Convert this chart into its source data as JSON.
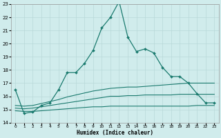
{
  "title": "",
  "xlabel": "Humidex (Indice chaleur)",
  "bg_color": "#d0ecec",
  "grid_color": "#b8d8d8",
  "line_color": "#1a7a6e",
  "xlim": [
    -0.5,
    23.5
  ],
  "ylim": [
    14,
    23
  ],
  "yticks": [
    14,
    15,
    16,
    17,
    18,
    19,
    20,
    21,
    22,
    23
  ],
  "xticks": [
    0,
    1,
    2,
    3,
    4,
    5,
    6,
    7,
    8,
    9,
    10,
    11,
    12,
    13,
    14,
    15,
    16,
    17,
    18,
    19,
    20,
    21,
    22,
    23
  ],
  "main_x": [
    0,
    1,
    2,
    3,
    4,
    5,
    6,
    7,
    8,
    9,
    10,
    11,
    12,
    13,
    14,
    15,
    16,
    17,
    18,
    19,
    20,
    21,
    22,
    23
  ],
  "main_y": [
    16.5,
    14.7,
    14.8,
    15.3,
    15.5,
    16.5,
    17.8,
    17.8,
    18.5,
    19.5,
    21.2,
    22.0,
    23.2,
    20.5,
    19.4,
    19.6,
    19.3,
    18.2,
    17.5,
    17.5,
    17.0,
    16.2,
    15.5,
    15.5
  ],
  "flat1_x": [
    0,
    1,
    2,
    3,
    4,
    5,
    6,
    7,
    8,
    9,
    10,
    11,
    12,
    13,
    14,
    15,
    16,
    17,
    18,
    19,
    20,
    21,
    22,
    23
  ],
  "flat1_y": [
    14.9,
    14.85,
    14.85,
    14.9,
    14.95,
    15.0,
    15.05,
    15.1,
    15.15,
    15.2,
    15.2,
    15.25,
    15.25,
    15.25,
    15.25,
    15.25,
    15.25,
    15.25,
    15.25,
    15.25,
    15.25,
    15.3,
    15.3,
    15.3
  ],
  "flat2_x": [
    0,
    1,
    2,
    3,
    4,
    5,
    6,
    7,
    8,
    9,
    10,
    11,
    12,
    13,
    14,
    15,
    16,
    17,
    18,
    19,
    20,
    21,
    22,
    23
  ],
  "flat2_y": [
    15.1,
    15.05,
    15.1,
    15.2,
    15.3,
    15.4,
    15.5,
    15.6,
    15.7,
    15.8,
    15.9,
    16.0,
    16.0,
    16.05,
    16.05,
    16.1,
    16.1,
    16.1,
    16.1,
    16.15,
    16.15,
    16.15,
    16.15,
    16.15
  ],
  "flat3_x": [
    0,
    1,
    2,
    3,
    4,
    5,
    6,
    7,
    8,
    9,
    10,
    11,
    12,
    13,
    14,
    15,
    16,
    17,
    18,
    19,
    20,
    21,
    22,
    23
  ],
  "flat3_y": [
    15.3,
    15.25,
    15.3,
    15.45,
    15.6,
    15.75,
    15.95,
    16.1,
    16.25,
    16.4,
    16.5,
    16.6,
    16.65,
    16.7,
    16.7,
    16.75,
    16.8,
    16.85,
    16.9,
    16.95,
    17.0,
    17.0,
    17.0,
    17.0
  ]
}
